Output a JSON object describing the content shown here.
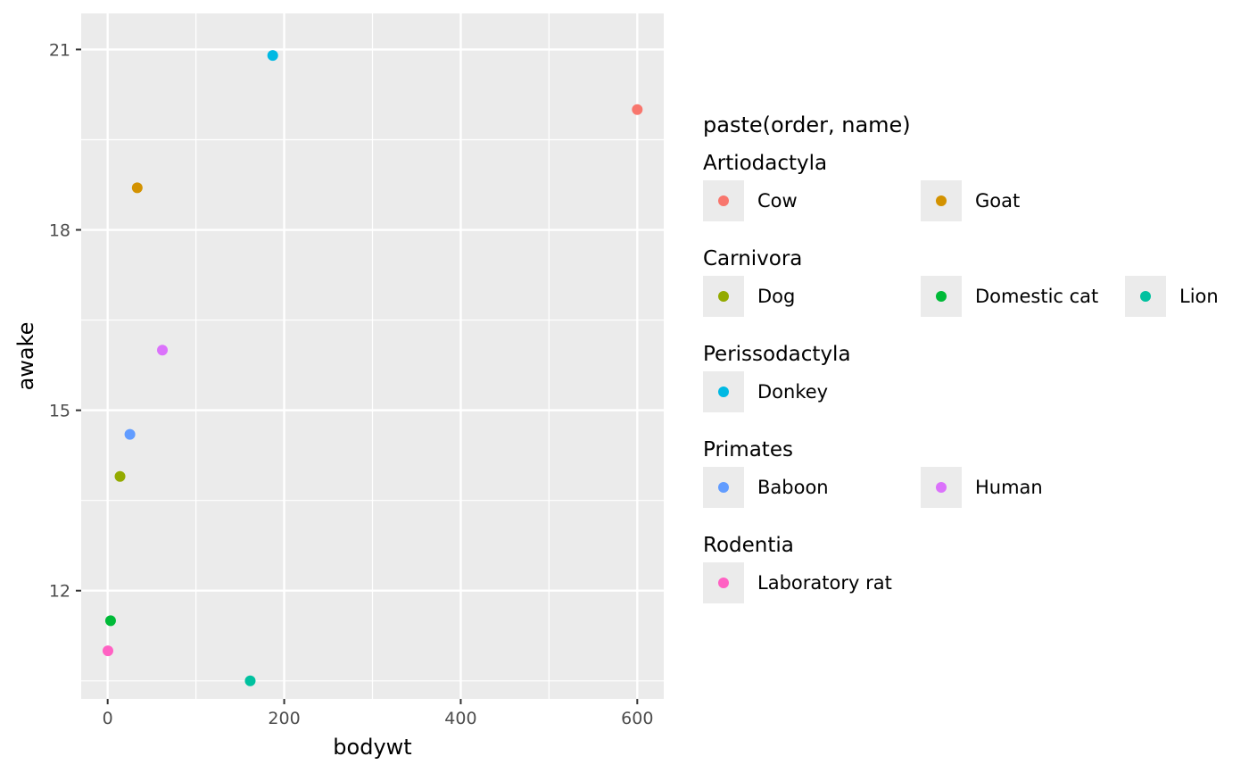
{
  "chart_data": {
    "type": "scatter",
    "title": "",
    "xlabel": "bodywt",
    "ylabel": "awake",
    "xlim": [
      -30,
      630
    ],
    "ylim": [
      10.2,
      21.6
    ],
    "x_ticks": [
      0,
      200,
      400,
      600
    ],
    "y_ticks": [
      12,
      15,
      18,
      21
    ],
    "grid": true,
    "legend": {
      "title": "paste(order, name)",
      "placement": "right",
      "groups": [
        {
          "name": "Artiodactyla",
          "items": [
            {
              "label": "Cow",
              "color": "#F8766D"
            },
            {
              "label": "Goat",
              "color": "#D39200"
            }
          ]
        },
        {
          "name": "Carnivora",
          "items": [
            {
              "label": "Dog",
              "color": "#93AA00"
            },
            {
              "label": "Domestic cat",
              "color": "#00BA38"
            },
            {
              "label": "Lion",
              "color": "#00C19F"
            }
          ]
        },
        {
          "name": "Perissodactyla",
          "items": [
            {
              "label": "Donkey",
              "color": "#00B9E3"
            }
          ]
        },
        {
          "name": "Primates",
          "items": [
            {
              "label": "Baboon",
              "color": "#619CFF"
            },
            {
              "label": "Human",
              "color": "#DB72FB"
            }
          ]
        },
        {
          "name": "Rodentia",
          "items": [
            {
              "label": "Laboratory rat",
              "color": "#FF61C3"
            }
          ]
        }
      ]
    },
    "points": [
      {
        "label": "Cow",
        "x": 600,
        "y": 20.0,
        "color": "#F8766D"
      },
      {
        "label": "Goat",
        "x": 33.5,
        "y": 18.7,
        "color": "#D39200"
      },
      {
        "label": "Dog",
        "x": 14,
        "y": 13.9,
        "color": "#93AA00"
      },
      {
        "label": "Domestic cat",
        "x": 3.3,
        "y": 11.5,
        "color": "#00BA38"
      },
      {
        "label": "Lion",
        "x": 161.5,
        "y": 10.5,
        "color": "#00C19F"
      },
      {
        "label": "Donkey",
        "x": 187,
        "y": 20.9,
        "color": "#00B9E3"
      },
      {
        "label": "Baboon",
        "x": 25.2,
        "y": 14.6,
        "color": "#619CFF"
      },
      {
        "label": "Human",
        "x": 62,
        "y": 16.0,
        "color": "#DB72FB"
      },
      {
        "label": "Laboratory rat",
        "x": 0.32,
        "y": 11.0,
        "color": "#FF61C3"
      }
    ]
  }
}
